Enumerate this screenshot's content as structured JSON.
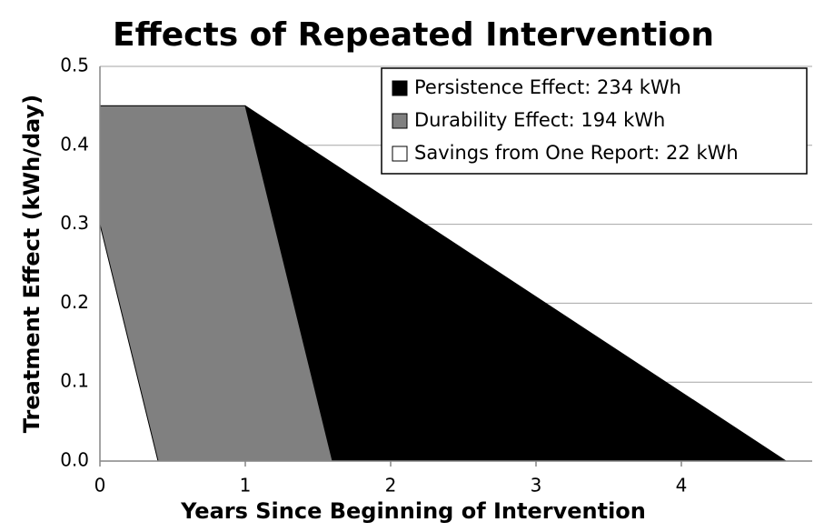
{
  "chart_data": {
    "type": "area",
    "title": "Effects of Repeated Intervention",
    "xlabel": "Years Since Beginning of Intervention",
    "ylabel": "Treatment Effect (kWh/day)",
    "xlim": [
      0,
      4.9
    ],
    "xticks": [
      0,
      1,
      2,
      3,
      4
    ],
    "ylim": [
      0,
      0.5
    ],
    "yticks": [
      {
        "value": 0,
        "label": "0.0"
      },
      0.1,
      0.2,
      0.3,
      0.4,
      0.5
    ],
    "grid": true,
    "legend": "upper right",
    "series": [
      {
        "name": "Persistence Effect: 234 kWh",
        "color": "#000000",
        "x": [
          0,
          1,
          4.72
        ],
        "values": [
          0.45,
          0.45,
          0
        ]
      },
      {
        "name": "Durability Effect: 194 kWh",
        "color": "#808080",
        "x": [
          0,
          1,
          1.6
        ],
        "values": [
          0.45,
          0.45,
          0
        ]
      },
      {
        "name": "Savings from One Report: 22 kWh",
        "color": "#ffffff",
        "x": [
          0,
          0.4
        ],
        "values": [
          0.3,
          0
        ]
      }
    ]
  }
}
